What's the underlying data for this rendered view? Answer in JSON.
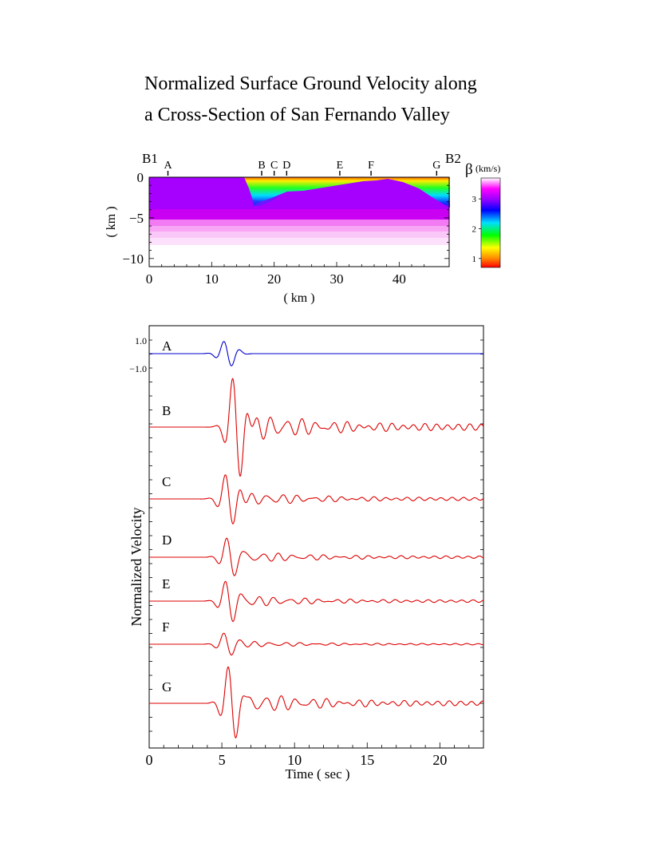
{
  "title_line1": "Normalized Surface Ground Velocity along",
  "title_line2": "a Cross-Section of San Fernando Valley",
  "chart_data": [
    {
      "type": "heatmap",
      "name": "cross-section",
      "xlabel": "( km )",
      "ylabel": "( km )",
      "xlim": [
        0,
        48
      ],
      "ylim": [
        -11,
        0
      ],
      "xticks": [
        "0",
        "10",
        "20",
        "30",
        "40"
      ],
      "yticks": [
        "0",
        "−5",
        "−10"
      ],
      "end_labels": [
        "B1",
        "B2"
      ],
      "stations": [
        {
          "label": "A",
          "x": 3
        },
        {
          "label": "B",
          "x": 18
        },
        {
          "label": "C",
          "x": 20
        },
        {
          "label": "D",
          "x": 22
        },
        {
          "label": "E",
          "x": 30.5
        },
        {
          "label": "F",
          "x": 35.5
        },
        {
          "label": "G",
          "x": 46
        }
      ],
      "colorbar": {
        "symbol": "β",
        "unit": "(km/s)",
        "ticks": [
          "1",
          "2",
          "3"
        ],
        "range": [
          0.7,
          3.7
        ],
        "colors": [
          "#ff0000",
          "#ff8800",
          "#ffff00",
          "#00ff00",
          "#00e0ff",
          "#0000ff",
          "#9900ff",
          "#ff00ff",
          "#ffffff"
        ]
      }
    },
    {
      "type": "line",
      "name": "velocity traces",
      "xlabel": "Time ( sec )",
      "ylabel": "Normalized Velocity",
      "xlim": [
        0,
        23
      ],
      "xticks": [
        "0",
        "5",
        "10",
        "15",
        "20"
      ],
      "scale_labels": [
        "1.0",
        "−1.0"
      ],
      "series": [
        {
          "name": "A",
          "color": "#0000cc",
          "onset": 4.2,
          "amp": 1.0
        },
        {
          "name": "B",
          "color": "#dd0000",
          "onset": 4.8,
          "amp": 4.0
        },
        {
          "name": "C",
          "color": "#dd0000",
          "onset": 4.3,
          "amp": 2.0
        },
        {
          "name": "D",
          "color": "#dd0000",
          "onset": 4.4,
          "amp": 1.6
        },
        {
          "name": "E",
          "color": "#dd0000",
          "onset": 4.3,
          "amp": 1.6
        },
        {
          "name": "F",
          "color": "#dd0000",
          "onset": 4.2,
          "amp": 0.9
        },
        {
          "name": "G",
          "color": "#dd0000",
          "onset": 4.5,
          "amp": 3.0
        }
      ]
    }
  ]
}
